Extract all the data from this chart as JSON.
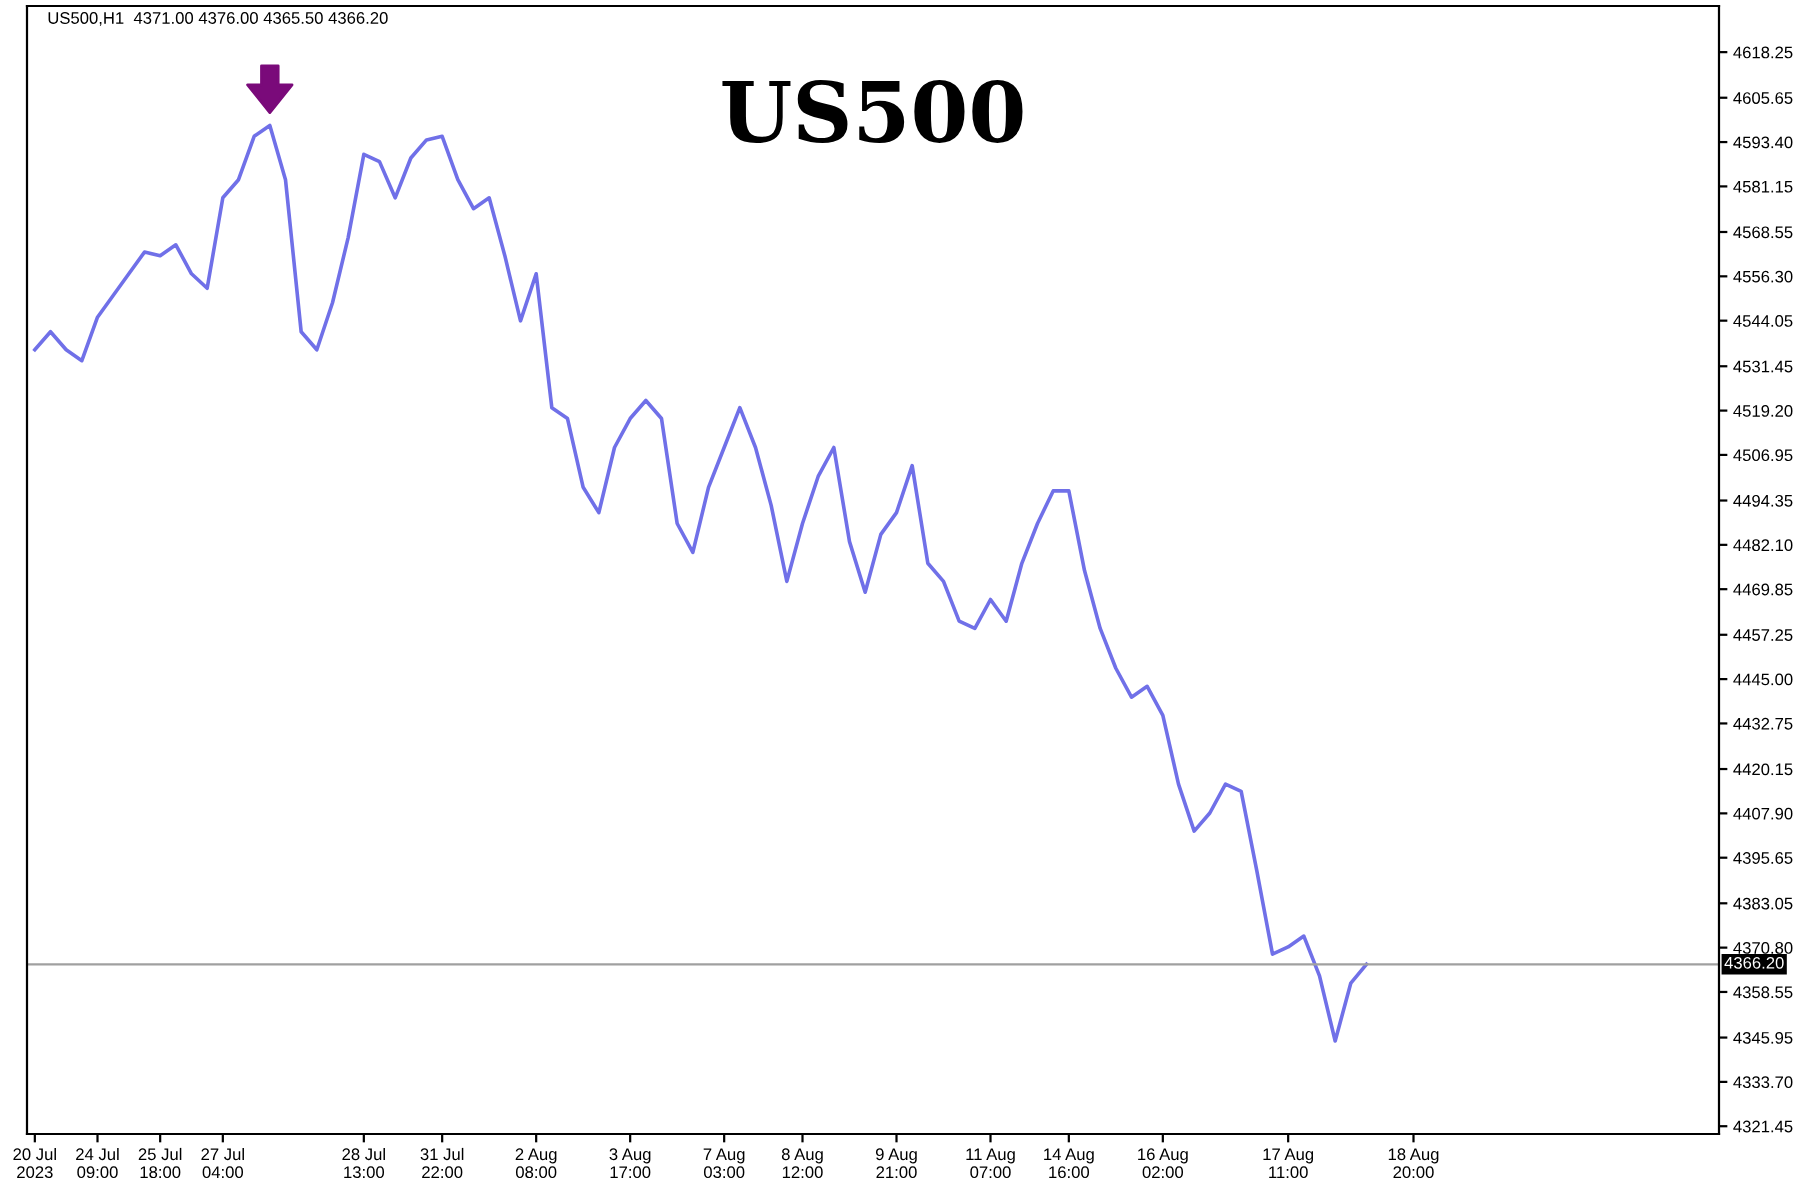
{
  "chart_data": {
    "type": "line",
    "title": "US500",
    "annotations": [
      "US500,H1  4371.00 4376.00 4365.50 4366.20"
    ],
    "categories": [
      "20 Jul 2023",
      null,
      null,
      null,
      "24 Jul 09:00",
      null,
      null,
      null,
      "25 Jul 18:00",
      null,
      null,
      null,
      "27 Jul 04:00",
      null,
      null,
      null,
      null,
      null,
      null,
      null,
      null,
      "28 Jul 13:00",
      null,
      null,
      null,
      null,
      "31 Jul 22:00",
      null,
      null,
      null,
      null,
      null,
      "2 Aug 08:00",
      null,
      null,
      null,
      null,
      null,
      "3 Aug 17:00",
      null,
      null,
      null,
      null,
      null,
      "7 Aug 03:00",
      null,
      null,
      null,
      null,
      "8 Aug 12:00",
      null,
      null,
      null,
      null,
      null,
      "9 Aug 21:00",
      null,
      null,
      null,
      null,
      null,
      "11 Aug 07:00",
      null,
      null,
      null,
      null,
      "14 Aug 16:00",
      null,
      null,
      null,
      null,
      null,
      "16 Aug 02:00",
      null,
      null,
      null,
      null,
      null,
      null,
      null,
      "17 Aug 11:00",
      null,
      null,
      null,
      null,
      null,
      null,
      null,
      "18 Aug 20:00",
      null,
      null,
      null,
      null,
      null,
      null,
      null,
      null,
      null,
      null,
      null,
      null,
      null,
      null,
      null,
      null,
      null,
      null,
      null
    ],
    "series": [
      {
        "color": "#7070e8",
        "values": [
          4536,
          4541,
          4536,
          4533,
          4545,
          4551,
          4557,
          4563,
          4562,
          4565,
          4557,
          4553,
          4578,
          4583,
          4595,
          4598,
          4583,
          4541,
          4536,
          4549,
          4567,
          4590,
          4588,
          4578,
          4589,
          4594,
          4595,
          4583,
          4575,
          4578,
          4562,
          4544,
          4557,
          4520,
          4517,
          4498,
          4491,
          4509,
          4517,
          4522,
          4517,
          4488,
          4480,
          4498,
          4509,
          4520,
          4509,
          4493,
          4472,
          4488,
          4501,
          4509,
          4483,
          4469,
          4485,
          4491,
          4504,
          4477,
          4472,
          4461,
          4459,
          4467,
          4461,
          4477,
          4488,
          4497,
          4497,
          4475,
          4459,
          4448,
          4440,
          4443,
          4435,
          4416,
          4403,
          4408,
          4416,
          4414,
          4392,
          4369,
          4371,
          4374,
          4363,
          4345,
          4361,
          4366.2,
          null,
          null,
          null,
          null,
          null,
          null,
          null,
          null,
          null,
          null,
          null,
          null,
          null,
          null,
          null,
          null,
          null,
          null,
          null,
          null,
          null,
          null
        ]
      }
    ],
    "ylim": [
      4319.3,
      4631
    ],
    "yticks": [
      4618.25,
      4605.65,
      {
        "value": 4593.4,
        "label": "4593.40"
      },
      4581.15,
      4568.55,
      {
        "value": 4556.3,
        "label": "4556.30"
      },
      4544.05,
      4531.45,
      {
        "value": 4519.2,
        "label": "4519.20"
      },
      4506.95,
      4494.35,
      {
        "value": 4482.1,
        "label": "4482.10"
      },
      4469.85,
      4457.25,
      {
        "value": 4445,
        "label": "4445.00"
      },
      4432.75,
      4420.15,
      {
        "value": 4407.9,
        "label": "4407.90"
      },
      4395.65,
      4383.05,
      {
        "value": 4370.8,
        "label": "4370.80"
      },
      4358.55,
      4345.95,
      {
        "value": 4333.7,
        "label": "4333.70"
      },
      4321.45
    ],
    "ref_lines": [
      {
        "axis": "y",
        "value": 4366.2,
        "label": "4366.20",
        "color": "#a0a0a0"
      }
    ],
    "grid": false,
    "marker": "none",
    "line_style": "solid"
  }
}
